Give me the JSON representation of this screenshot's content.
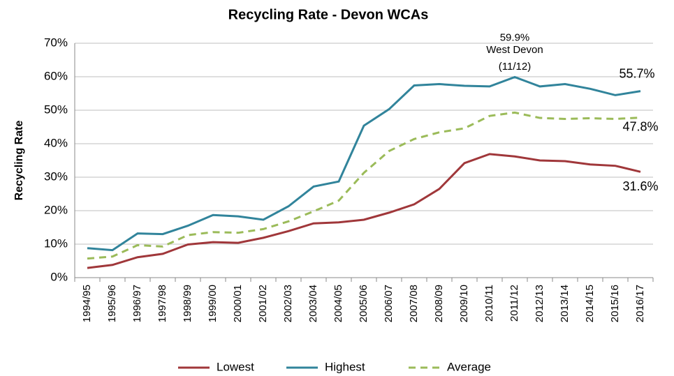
{
  "chart_data": {
    "type": "line",
    "title": "Recycling Rate - Devon WCAs",
    "y_label": "Recycling Rate",
    "categories": [
      "1994/95",
      "1995/96",
      "1996/97",
      "1997/98",
      "1998/99",
      "1999/00",
      "2000/01",
      "2001/02",
      "2002/03",
      "2003/04",
      "2004/05",
      "2005/06",
      "2006/07",
      "2007/08",
      "2008/09",
      "2009/10",
      "2010/11",
      "2011/12",
      "2012/13",
      "2013/14",
      "2014/15",
      "2015/16",
      "2016/17"
    ],
    "series": [
      {
        "name": "Lowest",
        "color": "#a0373a",
        "label_color": "#a0373a",
        "dash": false,
        "values": [
          2.9,
          3.8,
          6.1,
          7.1,
          9.9,
          10.6,
          10.4,
          11.9,
          13.9,
          16.2,
          16.5,
          17.3,
          19.4,
          21.9,
          26.5,
          34.2,
          36.9,
          36.2,
          35.0,
          34.8,
          33.8,
          33.4,
          31.6
        ],
        "value_labels": [
          null,
          null,
          null,
          null,
          null,
          null,
          null,
          null,
          null,
          null,
          null,
          null,
          null,
          null,
          null,
          null,
          null,
          null,
          null,
          null,
          null,
          null,
          "31.6%"
        ]
      },
      {
        "name": "Highest",
        "color": "#31849b",
        "label_color": "#31708a",
        "dash": false,
        "values": [
          8.8,
          8.2,
          13.2,
          13.0,
          15.5,
          18.7,
          18.3,
          17.3,
          21.3,
          27.2,
          28.7,
          45.4,
          50.3,
          57.4,
          57.8,
          57.3,
          57.1,
          59.9,
          57.1,
          57.8,
          56.4,
          54.5,
          55.7
        ],
        "value_labels": [
          null,
          null,
          null,
          null,
          null,
          null,
          null,
          null,
          null,
          null,
          null,
          null,
          null,
          null,
          null,
          null,
          null,
          "59.9%",
          null,
          null,
          null,
          null,
          "55.7%"
        ]
      },
      {
        "name": "Average",
        "color": "#9bbb59",
        "label_color": "#4f6228",
        "dash": true,
        "values": [
          5.7,
          6.3,
          9.7,
          9.3,
          12.7,
          13.6,
          13.4,
          14.5,
          16.8,
          19.8,
          23.0,
          31.3,
          37.8,
          41.4,
          43.4,
          44.6,
          48.3,
          49.3,
          47.7,
          47.4,
          47.6,
          47.4,
          47.8
        ],
        "value_labels": [
          null,
          null,
          null,
          null,
          null,
          null,
          null,
          null,
          null,
          null,
          null,
          null,
          null,
          null,
          null,
          null,
          null,
          null,
          null,
          null,
          null,
          null,
          "47.8%"
        ]
      }
    ],
    "annotation": [
      "West Devon",
      "(11/12)"
    ],
    "ylim": [
      0,
      70
    ],
    "yticks": [
      {
        "value": 0,
        "label": "0%"
      },
      {
        "value": 10,
        "label": "10%"
      },
      {
        "value": 20,
        "label": "20%"
      },
      {
        "value": 30,
        "label": "30%"
      },
      {
        "value": 40,
        "label": "40%"
      },
      {
        "value": 50,
        "label": "50%"
      },
      {
        "value": 60,
        "label": "60%"
      },
      {
        "value": 70,
        "label": "70%"
      }
    ],
    "grid": true,
    "legend": "bottom"
  }
}
